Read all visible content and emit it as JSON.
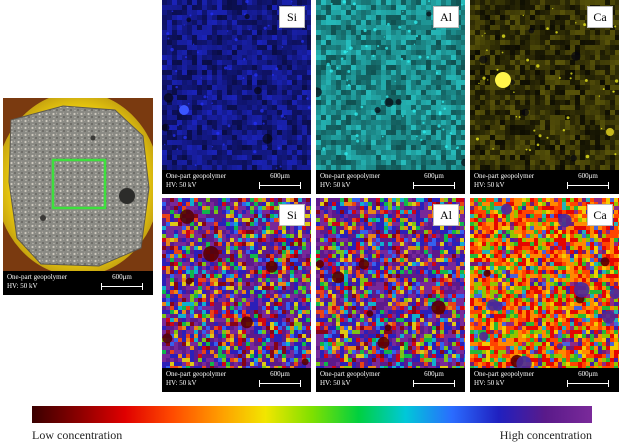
{
  "sample_photo": {
    "caption_line1": "One-part geopolymer",
    "caption_line2": "HV: 50 kV",
    "scale_label": "600μm",
    "box_color": "#3de03d",
    "mount_color": "#f2d21a"
  },
  "maps_intensity": [
    {
      "element": "Si",
      "caption_line1": "One-part geopolymer",
      "caption_line2": "HV: 50 kV",
      "scale_label": "600μm",
      "color": "#1f29d6"
    },
    {
      "element": "Al",
      "caption_line1": "One-part geopolymer",
      "caption_line2": "HV: 50 kV",
      "scale_label": "600μm",
      "color": "#29c8c8"
    },
    {
      "element": "Ca",
      "caption_line1": "One-part geopolymer",
      "caption_line2": "HV: 50 kV",
      "scale_label": "600μm",
      "color": "#f0e21a"
    }
  ],
  "maps_concentration": [
    {
      "element": "Si",
      "caption_line1": "One-part geopolymer",
      "caption_line2": "HV: 50 kV",
      "scale_label": "600μm"
    },
    {
      "element": "Al",
      "caption_line1": "One-part geopolymer",
      "caption_line2": "HV: 50 kV",
      "scale_label": "600μm"
    },
    {
      "element": "Ca",
      "caption_line1": "One-part geopolymer",
      "caption_line2": "HV: 50 kV",
      "scale_label": "600μm"
    }
  ],
  "colorbar": {
    "low_label": "Low concentration",
    "high_label": "High concentration",
    "stops": [
      "#3a0000",
      "#8b0000",
      "#e00000",
      "#ff4a00",
      "#ff9a00",
      "#f2e600",
      "#7fe000",
      "#00d040",
      "#00c8d8",
      "#2a6cff",
      "#2020c0",
      "#5a1a8a",
      "#7a2a9a"
    ]
  }
}
